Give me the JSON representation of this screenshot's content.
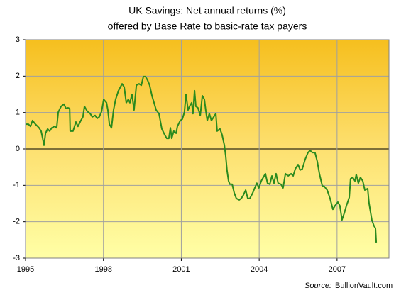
{
  "chart_data": {
    "type": "line",
    "title": "UK Savings: Net annual returns (%)",
    "subtitle": "offered by Base Rate to basic-rate tax payers",
    "source_label": "Source:",
    "source": "BullionVault.com",
    "xlim": [
      1995,
      2009
    ],
    "xticks": [
      1995,
      1998,
      2001,
      2004,
      2007
    ],
    "ylim": [
      -3,
      3
    ],
    "yticks": [
      -3,
      -2,
      -1,
      0,
      1,
      2,
      3
    ],
    "grid": true,
    "x": [
      1995.0,
      1995.11,
      1995.19,
      1995.27,
      1995.38,
      1995.52,
      1995.6,
      1995.66,
      1995.71,
      1995.77,
      1995.85,
      1995.93,
      1996.01,
      1996.12,
      1996.2,
      1996.26,
      1996.37,
      1996.48,
      1996.56,
      1996.64,
      1996.7,
      1996.72,
      1996.83,
      1996.94,
      1997.02,
      1997.13,
      1997.21,
      1997.27,
      1997.38,
      1997.49,
      1997.57,
      1997.68,
      1997.76,
      1997.84,
      1997.93,
      1998.01,
      1998.12,
      1998.17,
      1998.23,
      1998.31,
      1998.39,
      1998.47,
      1998.58,
      1998.72,
      1998.8,
      1998.88,
      1998.96,
      1999.02,
      1999.1,
      1999.18,
      1999.27,
      1999.37,
      1999.46,
      1999.54,
      1999.62,
      1999.7,
      1999.78,
      1999.87,
      1999.95,
      2000.03,
      2000.14,
      2000.25,
      2000.36,
      2000.44,
      2000.52,
      2000.58,
      2000.63,
      2000.71,
      2000.8,
      2000.85,
      2000.96,
      2001.04,
      2001.12,
      2001.18,
      2001.26,
      2001.34,
      2001.4,
      2001.45,
      2001.51,
      2001.56,
      2001.64,
      2001.73,
      2001.81,
      2001.89,
      2001.94,
      2002.0,
      2002.08,
      2002.16,
      2002.25,
      2002.33,
      2002.38,
      2002.49,
      2002.57,
      2002.66,
      2002.71,
      2002.76,
      2002.82,
      2002.87,
      2002.96,
      2003.04,
      2003.12,
      2003.23,
      2003.31,
      2003.39,
      2003.48,
      2003.56,
      2003.64,
      2003.75,
      2003.83,
      2003.91,
      2003.99,
      2004.08,
      2004.16,
      2004.24,
      2004.32,
      2004.41,
      2004.49,
      2004.57,
      2004.65,
      2004.73,
      2004.84,
      2004.92,
      2005.01,
      2005.12,
      2005.23,
      2005.31,
      2005.39,
      2005.5,
      2005.58,
      2005.66,
      2005.77,
      2005.88,
      2005.96,
      2006.05,
      2006.15,
      2006.24,
      2006.32,
      2006.43,
      2006.51,
      2006.62,
      2006.73,
      2006.84,
      2006.92,
      2007.03,
      2007.11,
      2007.19,
      2007.28,
      2007.36,
      2007.41,
      2007.47,
      2007.52,
      2007.6,
      2007.69,
      2007.74,
      2007.82,
      2007.9,
      2007.99,
      2008.07,
      2008.18,
      2008.23,
      2008.34,
      2008.42,
      2008.48,
      2008.51
    ],
    "series": [
      {
        "name": "Net annual return",
        "color": "#2a8a1e",
        "values": [
          0.68,
          0.68,
          0.62,
          0.78,
          0.68,
          0.58,
          0.49,
          0.29,
          0.1,
          0.43,
          0.55,
          0.49,
          0.58,
          0.62,
          0.58,
          1.01,
          1.17,
          1.23,
          1.11,
          1.13,
          1.11,
          0.49,
          0.49,
          0.74,
          0.62,
          0.78,
          0.88,
          1.17,
          1.03,
          0.97,
          0.88,
          0.92,
          0.84,
          0.88,
          1.03,
          1.36,
          1.27,
          1.07,
          0.68,
          0.58,
          1.07,
          1.36,
          1.6,
          1.79,
          1.7,
          1.27,
          1.36,
          1.27,
          1.5,
          1.07,
          1.75,
          1.79,
          1.75,
          1.99,
          1.99,
          1.89,
          1.75,
          1.46,
          1.27,
          1.07,
          0.97,
          0.55,
          0.39,
          0.29,
          0.29,
          0.58,
          0.29,
          0.49,
          0.43,
          0.62,
          0.78,
          0.82,
          1.01,
          1.5,
          1.07,
          1.2,
          1.27,
          0.97,
          1.6,
          1.17,
          1.13,
          0.92,
          1.46,
          1.36,
          1.07,
          0.78,
          0.97,
          0.78,
          0.88,
          0.97,
          0.49,
          0.55,
          0.39,
          0.1,
          -0.19,
          -0.58,
          -0.88,
          -0.97,
          -0.97,
          -1.21,
          -1.36,
          -1.4,
          -1.36,
          -1.27,
          -1.13,
          -1.36,
          -1.36,
          -1.21,
          -1.07,
          -0.94,
          -1.07,
          -0.88,
          -0.78,
          -0.68,
          -0.94,
          -0.97,
          -0.74,
          -0.94,
          -0.68,
          -0.94,
          -0.97,
          -1.07,
          -0.68,
          -0.74,
          -0.68,
          -0.74,
          -0.55,
          -0.43,
          -0.58,
          -0.55,
          -0.29,
          -0.1,
          -0.04,
          -0.1,
          -0.1,
          -0.35,
          -0.68,
          -1.01,
          -1.03,
          -1.13,
          -1.36,
          -1.66,
          -1.56,
          -1.46,
          -1.56,
          -1.95,
          -1.76,
          -1.56,
          -1.46,
          -1.33,
          -0.82,
          -0.78,
          -0.88,
          -0.7,
          -0.94,
          -0.78,
          -0.88,
          -1.13,
          -1.09,
          -1.48,
          -1.95,
          -2.11,
          -2.18,
          -2.57
        ]
      }
    ]
  }
}
